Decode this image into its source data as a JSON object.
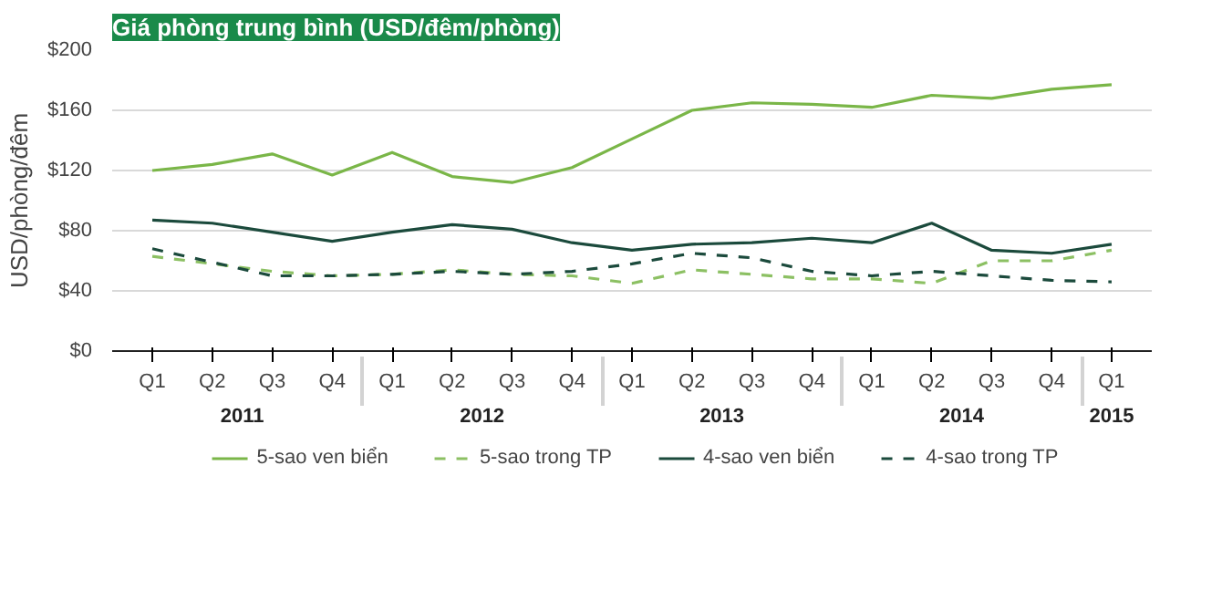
{
  "chart_data": {
    "type": "line",
    "title": "Giá phòng trung bình (USD/đêm/phòng)",
    "ylabel": "USD/phòng/đêm",
    "categories": [
      "Q1",
      "Q2",
      "Q3",
      "Q4",
      "Q1",
      "Q2",
      "Q3",
      "Q4",
      "Q1",
      "Q2",
      "Q3",
      "Q4",
      "Q1",
      "Q2",
      "Q3",
      "Q4",
      "Q1"
    ],
    "annotations": [
      "2011",
      "2012",
      "2013",
      "2014",
      "2015"
    ],
    "series": [
      {
        "name": "5-sao ven biển",
        "color": "#7ab648",
        "line_style": "solid",
        "values": [
          120,
          124,
          131,
          117,
          132,
          116,
          112,
          122,
          141,
          160,
          165,
          164,
          162,
          170,
          168,
          174,
          177
        ]
      },
      {
        "name": "5-sao trong TP",
        "color": "#8cc063",
        "line_style": "dashed",
        "values": [
          63,
          58,
          53,
          50,
          51,
          54,
          51,
          50,
          45,
          54,
          51,
          48,
          48,
          45,
          60,
          60,
          67
        ]
      },
      {
        "name": "4-sao ven biển",
        "color": "#1b4a3c",
        "line_style": "solid",
        "values": [
          87,
          85,
          79,
          73,
          79,
          84,
          81,
          72,
          67,
          71,
          72,
          75,
          72,
          85,
          67,
          65,
          71
        ]
      },
      {
        "name": "4-sao trong TP",
        "color": "#1b4a3c",
        "line_style": "dashed",
        "values": [
          68,
          59,
          50,
          50,
          51,
          53,
          51,
          53,
          58,
          65,
          62,
          53,
          50,
          53,
          50,
          47,
          46
        ]
      }
    ],
    "ylim": [
      0,
      200
    ],
    "yticks": [
      {
        "value": 0,
        "label": "$0"
      },
      {
        "value": 40,
        "label": "$40"
      },
      {
        "value": 80,
        "label": "$80"
      },
      {
        "value": 120,
        "label": "$120"
      },
      {
        "value": 160,
        "label": "$160"
      },
      {
        "value": 200,
        "label": "$200"
      }
    ],
    "grid": "y",
    "legend": "bottom",
    "marker": "none"
  }
}
